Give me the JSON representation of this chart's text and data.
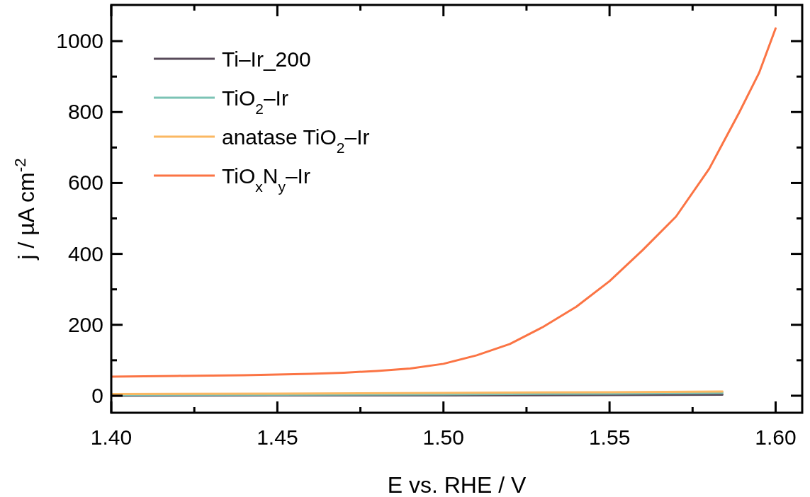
{
  "chart_data": {
    "type": "line",
    "xlabel": "E vs. RHE / V",
    "ylabel": "j / µA cm$^{-2}$",
    "xlim": [
      1.4,
      1.608
    ],
    "ylim": [
      -48,
      1102
    ],
    "xticks": [
      {
        "value": 1.4,
        "label": "1.40"
      },
      {
        "value": 1.425,
        "label": null
      },
      {
        "value": 1.45,
        "label": "1.45"
      },
      {
        "value": 1.475,
        "label": null
      },
      {
        "value": 1.5,
        "label": "1.50"
      },
      {
        "value": 1.525,
        "label": null
      },
      {
        "value": 1.55,
        "label": "1.55"
      },
      {
        "value": 1.575,
        "label": null
      },
      {
        "value": 1.6,
        "label": "1.60"
      }
    ],
    "yticks": [
      0,
      {
        "value": 100,
        "label": null
      },
      200,
      {
        "value": 300,
        "label": null
      },
      400,
      {
        "value": 500,
        "label": null
      },
      600,
      {
        "value": 700,
        "label": null
      },
      800,
      {
        "value": 900,
        "label": null
      },
      1000
    ],
    "legend": "top left",
    "grid": false,
    "line_style": "solid",
    "series": [
      {
        "name": "Ti–Ir_200",
        "color": "#584a5a",
        "x": [
          1.4,
          1.45,
          1.5,
          1.55,
          1.584
        ],
        "values": [
          0,
          1,
          1,
          2,
          3
        ]
      },
      {
        "name": "TiO$_{2}$–Ir",
        "color": "#7cc3b5",
        "x": [
          1.4,
          1.45,
          1.5,
          1.55,
          1.584
        ],
        "values": [
          2,
          3,
          4,
          6,
          8
        ]
      },
      {
        "name": "anatase TiO$_{2}$–Ir",
        "color": "#fbb862",
        "x": [
          1.4,
          1.45,
          1.5,
          1.55,
          1.584
        ],
        "values": [
          5,
          6,
          8,
          10,
          12
        ]
      },
      {
        "name": "TiO$_{x}$N$_{y}$–Ir",
        "color": "#fb7444",
        "x": [
          1.4,
          1.42,
          1.44,
          1.46,
          1.47,
          1.48,
          1.49,
          1.5,
          1.51,
          1.52,
          1.53,
          1.54,
          1.55,
          1.56,
          1.57,
          1.58,
          1.589,
          1.595,
          1.6
        ],
        "values": [
          54,
          56,
          58,
          62,
          65,
          70,
          77,
          90,
          114,
          146,
          194,
          251,
          323,
          411,
          505,
          640,
          798,
          910,
          1036
        ]
      }
    ]
  }
}
